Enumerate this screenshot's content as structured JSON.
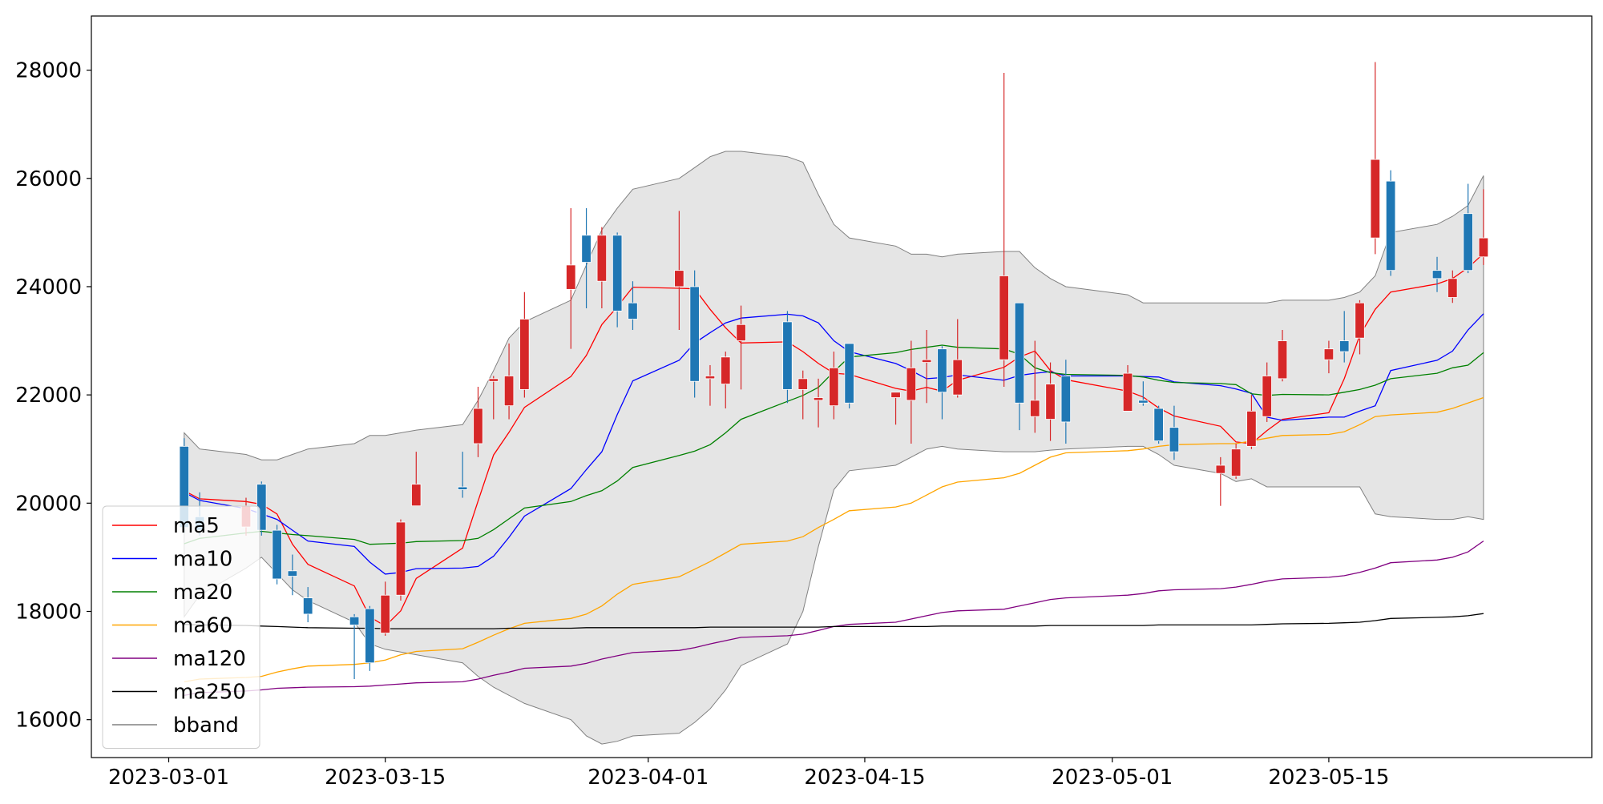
{
  "chart_data": {
    "type": "candlestick",
    "title": "",
    "xlabel": "",
    "ylabel": "",
    "xlim": [
      "2023-02-24",
      "2023-06-01"
    ],
    "ylim": [
      15300,
      29000
    ],
    "grid": false,
    "legend_position": "lower-left",
    "x_ticks": [
      "2023-03-01",
      "2023-03-15",
      "2023-04-01",
      "2023-04-15",
      "2023-05-01",
      "2023-05-15"
    ],
    "y_ticks": [
      16000,
      18000,
      20000,
      22000,
      24000,
      26000,
      28000
    ],
    "up_color": "#d62728",
    "down_color": "#1f77b4",
    "dates": [
      "2023-03-02",
      "2023-03-03",
      "2023-03-06",
      "2023-03-07",
      "2023-03-08",
      "2023-03-09",
      "2023-03-10",
      "2023-03-13",
      "2023-03-14",
      "2023-03-15",
      "2023-03-16",
      "2023-03-17",
      "2023-03-20",
      "2023-03-21",
      "2023-03-22",
      "2023-03-23",
      "2023-03-24",
      "2023-03-27",
      "2023-03-28",
      "2023-03-29",
      "2023-03-30",
      "2023-03-31",
      "2023-04-03",
      "2023-04-04",
      "2023-04-05",
      "2023-04-06",
      "2023-04-07",
      "2023-04-10",
      "2023-04-11",
      "2023-04-12",
      "2023-04-13",
      "2023-04-14",
      "2023-04-17",
      "2023-04-18",
      "2023-04-19",
      "2023-04-20",
      "2023-04-21",
      "2023-04-24",
      "2023-04-25",
      "2023-04-26",
      "2023-04-27",
      "2023-04-28",
      "2023-05-02",
      "2023-05-03",
      "2023-05-04",
      "2023-05-05",
      "2023-05-08",
      "2023-05-09",
      "2023-05-10",
      "2023-05-11",
      "2023-05-12",
      "2023-05-15",
      "2023-05-16",
      "2023-05-17",
      "2023-05-18",
      "2023-05-19",
      "2023-05-22",
      "2023-05-23",
      "2023-05-24",
      "2023-05-25"
    ],
    "open": [
      21050,
      19750,
      19560,
      20350,
      19500,
      18750,
      18250,
      17900,
      18050,
      17600,
      18300,
      19950,
      20300,
      21100,
      22250,
      21800,
      22100,
      23950,
      24950,
      24100,
      24950,
      23700,
      24000,
      24000,
      22300,
      22200,
      23000,
      23350,
      22100,
      21900,
      21800,
      22950,
      21950,
      21900,
      22600,
      22850,
      22000,
      22650,
      23700,
      21600,
      21550,
      22350,
      21700,
      21900,
      21750,
      21400,
      20550,
      20500,
      21050,
      21600,
      22300,
      22650,
      23000,
      23050,
      24900,
      25950,
      24300,
      23800,
      25350,
      24550
    ],
    "close": [
      19550,
      19500,
      19950,
      19500,
      18600,
      18650,
      17950,
      17750,
      17050,
      18300,
      19650,
      20350,
      20250,
      21750,
      22300,
      22350,
      23400,
      24400,
      24450,
      24950,
      23550,
      23400,
      24300,
      22250,
      22350,
      22700,
      23300,
      22100,
      22300,
      21950,
      22500,
      21850,
      22050,
      22500,
      22650,
      22050,
      22650,
      24200,
      21850,
      21900,
      22200,
      21500,
      22400,
      21850,
      21150,
      20950,
      20700,
      21000,
      21700,
      22350,
      23000,
      22850,
      22800,
      23700,
      26350,
      24300,
      24150,
      24150,
      24300,
      24900
    ],
    "high": [
      21200,
      20200,
      20100,
      20400,
      19600,
      19050,
      18450,
      17950,
      18100,
      18550,
      19700,
      20950,
      20950,
      22150,
      22350,
      22950,
      23900,
      25450,
      25450,
      25100,
      25000,
      24100,
      25400,
      24300,
      22550,
      22800,
      23650,
      23550,
      22450,
      22300,
      22800,
      22950,
      22050,
      23000,
      23200,
      22900,
      23400,
      27950,
      23700,
      23000,
      22600,
      22650,
      22550,
      22250,
      21800,
      21800,
      20850,
      21100,
      22000,
      22600,
      23200,
      23000,
      23550,
      23750,
      28150,
      26150,
      24550,
      24300,
      25900,
      25800
    ],
    "low": [
      19450,
      19400,
      19400,
      19400,
      18500,
      18300,
      17800,
      16750,
      16900,
      17550,
      18200,
      19950,
      20100,
      20850,
      21550,
      21550,
      21950,
      22850,
      23600,
      23600,
      23250,
      23200,
      23200,
      21950,
      21800,
      21750,
      22100,
      21850,
      21550,
      21400,
      21550,
      21750,
      21450,
      21100,
      21850,
      21550,
      21950,
      22150,
      21350,
      21300,
      21150,
      21100,
      21800,
      21800,
      21100,
      20800,
      19950,
      20450,
      21000,
      21500,
      22250,
      22400,
      22600,
      22750,
      24600,
      24200,
      23900,
      23700,
      24250,
      24400
    ],
    "series": [
      {
        "name": "ma5",
        "color": "#ff0000",
        "values": [
          20230,
          20080,
          20030,
          19980,
          19800,
          19240,
          18870,
          18470,
          17900,
          17730,
          18010,
          18610,
          19170,
          20040,
          20890,
          21310,
          21770,
          22340,
          22730,
          23300,
          23630,
          23990,
          23970,
          23960,
          23580,
          23240,
          22960,
          22980,
          22800,
          22580,
          22400,
          22380,
          22120,
          22070,
          22140,
          22070,
          22270,
          22510,
          22700,
          22810,
          22450,
          22280,
          22070,
          21960,
          21760,
          21610,
          21420,
          21130,
          21100,
          21340,
          21550,
          21670,
          22300,
          23100,
          23580,
          23900,
          24050,
          24150,
          24350,
          24610
        ]
      },
      {
        "name": "ma10",
        "color": "#0000ff",
        "values": [
          20200,
          20050,
          19900,
          19800,
          19700,
          19500,
          19300,
          19200,
          18910,
          18690,
          18720,
          18790,
          18800,
          18830,
          19020,
          19370,
          19760,
          20270,
          20620,
          20950,
          21640,
          22260,
          22640,
          22960,
          23150,
          23330,
          23420,
          23490,
          23460,
          23330,
          23000,
          22800,
          22580,
          22450,
          22300,
          22320,
          22370,
          22270,
          22360,
          22400,
          22430,
          22350,
          22350,
          22340,
          22330,
          22240,
          22170,
          22110,
          22030,
          21590,
          21530,
          21590,
          21590,
          21700,
          21800,
          22450,
          22640,
          22810,
          23200,
          23500
        ]
      },
      {
        "name": "ma20",
        "color": "#008000",
        "values": [
          19250,
          19350,
          19450,
          19480,
          19450,
          19420,
          19400,
          19330,
          19240,
          19250,
          19260,
          19290,
          19310,
          19350,
          19510,
          19710,
          19910,
          20030,
          20140,
          20230,
          20410,
          20660,
          20880,
          20960,
          21080,
          21300,
          21550,
          21880,
          21990,
          22140,
          22430,
          22700,
          22780,
          22840,
          22880,
          22920,
          22880,
          22850,
          22750,
          22500,
          22410,
          22380,
          22360,
          22330,
          22270,
          22230,
          22210,
          22190,
          22020,
          21990,
          22010,
          22000,
          22050,
          22100,
          22180,
          22300,
          22400,
          22500,
          22550,
          22780
        ]
      },
      {
        "name": "ma60",
        "color": "#ffa500",
        "values": [
          16700,
          16750,
          16780,
          16800,
          16880,
          16940,
          16990,
          17020,
          17050,
          17100,
          17200,
          17260,
          17310,
          17430,
          17560,
          17680,
          17780,
          17870,
          17950,
          18100,
          18320,
          18500,
          18640,
          18780,
          18920,
          19080,
          19240,
          19300,
          19380,
          19550,
          19700,
          19860,
          19930,
          20000,
          20150,
          20300,
          20390,
          20470,
          20550,
          20700,
          20850,
          20930,
          20970,
          21000,
          21050,
          21080,
          21100,
          21100,
          21150,
          21200,
          21250,
          21270,
          21320,
          21450,
          21600,
          21630,
          21680,
          21750,
          21850,
          21950
        ]
      },
      {
        "name": "ma120",
        "color": "#800080",
        "values": [
          16450,
          16500,
          16530,
          16550,
          16580,
          16590,
          16600,
          16610,
          16620,
          16640,
          16660,
          16680,
          16700,
          16750,
          16820,
          16880,
          16950,
          16990,
          17040,
          17120,
          17180,
          17240,
          17280,
          17330,
          17400,
          17460,
          17520,
          17550,
          17580,
          17650,
          17720,
          17760,
          17800,
          17860,
          17920,
          17980,
          18010,
          18040,
          18100,
          18160,
          18220,
          18250,
          18300,
          18330,
          18380,
          18400,
          18420,
          18450,
          18500,
          18560,
          18600,
          18630,
          18660,
          18720,
          18800,
          18900,
          18950,
          19000,
          19100,
          19300
        ]
      },
      {
        "name": "ma250",
        "color": "#000000",
        "values": [
          17760,
          17750,
          17740,
          17730,
          17720,
          17710,
          17700,
          17690,
          17690,
          17680,
          17680,
          17680,
          17680,
          17680,
          17680,
          17690,
          17690,
          17690,
          17700,
          17700,
          17700,
          17700,
          17700,
          17700,
          17710,
          17710,
          17710,
          17710,
          17710,
          17710,
          17720,
          17720,
          17720,
          17720,
          17720,
          17730,
          17730,
          17730,
          17730,
          17730,
          17740,
          17740,
          17740,
          17740,
          17750,
          17750,
          17750,
          17750,
          17750,
          17760,
          17770,
          17780,
          17790,
          17800,
          17830,
          17870,
          17890,
          17900,
          17920,
          17960
        ]
      }
    ],
    "bband": {
      "name": "bband",
      "edge_color": "#808080",
      "fill_color": "#e5e5e5",
      "upper": [
        21300,
        21000,
        20900,
        20800,
        20800,
        20900,
        21000,
        21100,
        21250,
        21250,
        21300,
        21350,
        21450,
        21900,
        22450,
        23050,
        23350,
        23750,
        24400,
        25050,
        25450,
        25800,
        26000,
        26200,
        26400,
        26500,
        26500,
        26400,
        26300,
        25700,
        25150,
        24900,
        24750,
        24600,
        24600,
        24550,
        24600,
        24650,
        24650,
        24350,
        24150,
        24000,
        23850,
        23700,
        23700,
        23700,
        23700,
        23700,
        23700,
        23700,
        23750,
        23750,
        23800,
        23900,
        24200,
        25000,
        25150,
        25300,
        25500,
        26050
      ],
      "lower": [
        17900,
        18300,
        18800,
        19000,
        18700,
        18400,
        18200,
        17800,
        17400,
        17300,
        17250,
        17200,
        17050,
        16800,
        16600,
        16450,
        16300,
        16000,
        15700,
        15550,
        15600,
        15700,
        15750,
        15950,
        16200,
        16550,
        17000,
        17400,
        18000,
        19200,
        20250,
        20600,
        20700,
        20850,
        21000,
        21050,
        21000,
        20950,
        20950,
        20950,
        20980,
        21000,
        21050,
        21050,
        20900,
        20700,
        20550,
        20400,
        20450,
        20300,
        20300,
        20300,
        20300,
        20300,
        19800,
        19750,
        19700,
        19700,
        19750,
        19700
      ]
    }
  }
}
